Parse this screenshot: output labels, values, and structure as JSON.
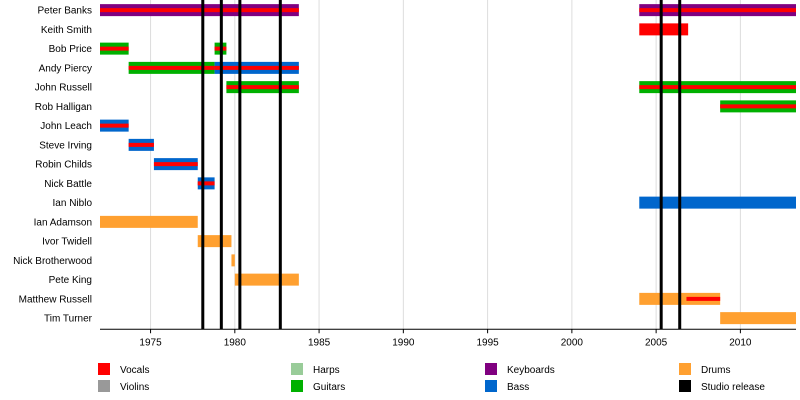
{
  "chart_data": {
    "type": "timeline",
    "title": "",
    "xaxis": {
      "range": [
        1972,
        2013.3
      ],
      "ticks": [
        1975,
        1980,
        1985,
        1990,
        1995,
        2000,
        2005,
        2010
      ]
    },
    "members": [
      {
        "name": "Peter Banks",
        "spans": [
          {
            "start": 1972,
            "end": 1983.8,
            "role": "keyboards",
            "stripe": "vocals"
          },
          {
            "start": 2004,
            "end": 2013.3,
            "role": "keyboards",
            "stripe": "vocals"
          }
        ]
      },
      {
        "name": "Keith Smith",
        "spans": [
          {
            "start": 2004,
            "end": 2006.9,
            "role": "vocals"
          }
        ]
      },
      {
        "name": "Bob Price",
        "spans": [
          {
            "start": 1972,
            "end": 1973.7,
            "role": "guitars",
            "stripe": "vocals"
          },
          {
            "start": 1978.8,
            "end": 1979.5,
            "role": "guitars",
            "stripe": "vocals"
          }
        ]
      },
      {
        "name": "Andy Piercy",
        "spans": [
          {
            "start": 1973.7,
            "end": 1978.8,
            "role": "guitars",
            "stripe": "vocals"
          },
          {
            "start": 1978.8,
            "end": 1983.8,
            "role": "bass",
            "stripe": "vocals"
          }
        ]
      },
      {
        "name": "John Russell",
        "spans": [
          {
            "start": 1979.5,
            "end": 1983.8,
            "role": "guitars",
            "stripe": "vocals"
          },
          {
            "start": 2004,
            "end": 2013.3,
            "role": "guitars",
            "stripe": "vocals"
          }
        ]
      },
      {
        "name": "Rob Halligan",
        "spans": [
          {
            "start": 2008.8,
            "end": 2013.3,
            "role": "guitars",
            "stripe": "vocals"
          }
        ]
      },
      {
        "name": "John Leach",
        "spans": [
          {
            "start": 1972,
            "end": 1973.7,
            "role": "bass",
            "stripe": "vocals"
          }
        ]
      },
      {
        "name": "Steve Irving",
        "spans": [
          {
            "start": 1973.7,
            "end": 1975.2,
            "role": "bass",
            "stripe": "vocals"
          }
        ]
      },
      {
        "name": "Robin Childs",
        "spans": [
          {
            "start": 1975.2,
            "end": 1977.8,
            "role": "bass",
            "stripe": "vocals"
          }
        ]
      },
      {
        "name": "Nick Battle",
        "spans": [
          {
            "start": 1977.8,
            "end": 1978.8,
            "role": "bass",
            "stripe": "vocals"
          }
        ]
      },
      {
        "name": "Ian Niblo",
        "spans": [
          {
            "start": 2004,
            "end": 2013.3,
            "role": "bass"
          }
        ]
      },
      {
        "name": "Ian Adamson",
        "spans": [
          {
            "start": 1972,
            "end": 1977.8,
            "role": "drums"
          }
        ]
      },
      {
        "name": "Ivor Twidell",
        "spans": [
          {
            "start": 1977.8,
            "end": 1979.8,
            "role": "drums"
          }
        ]
      },
      {
        "name": "Nick Brotherwood",
        "spans": [
          {
            "start": 1979.8,
            "end": 1980,
            "role": "drums"
          }
        ]
      },
      {
        "name": "Pete King",
        "spans": [
          {
            "start": 1980,
            "end": 1983.8,
            "role": "drums"
          }
        ]
      },
      {
        "name": "Matthew Russell",
        "spans": [
          {
            "start": 2004,
            "end": 2008.8,
            "role": "drums"
          },
          {
            "start": 2006.8,
            "end": 2008.8,
            "role": "drums",
            "stripe": "vocals",
            "stripe_only": true
          }
        ]
      },
      {
        "name": "Tim Turner",
        "spans": [
          {
            "start": 2008.8,
            "end": 2013.3,
            "role": "drums"
          }
        ]
      }
    ],
    "studio_releases": [
      1978.1,
      1979.2,
      1980.3,
      1982.7,
      2005.3,
      2006.4
    ],
    "legend": [
      {
        "key": "vocals",
        "label": "Vocals",
        "color": "#ff0000"
      },
      {
        "key": "violins",
        "label": "Violins",
        "color": "#999999"
      },
      {
        "key": "harps",
        "label": "Harps",
        "color": "#99cc99"
      },
      {
        "key": "guitars",
        "label": "Guitars",
        "color": "#00b000"
      },
      {
        "key": "keyboards",
        "label": "Keyboards",
        "color": "#800080"
      },
      {
        "key": "bass",
        "label": "Bass",
        "color": "#0066cc"
      },
      {
        "key": "drums",
        "label": "Drums",
        "color": "#ffa030"
      },
      {
        "key": "studio",
        "label": "Studio release",
        "color": "#000000"
      }
    ]
  }
}
